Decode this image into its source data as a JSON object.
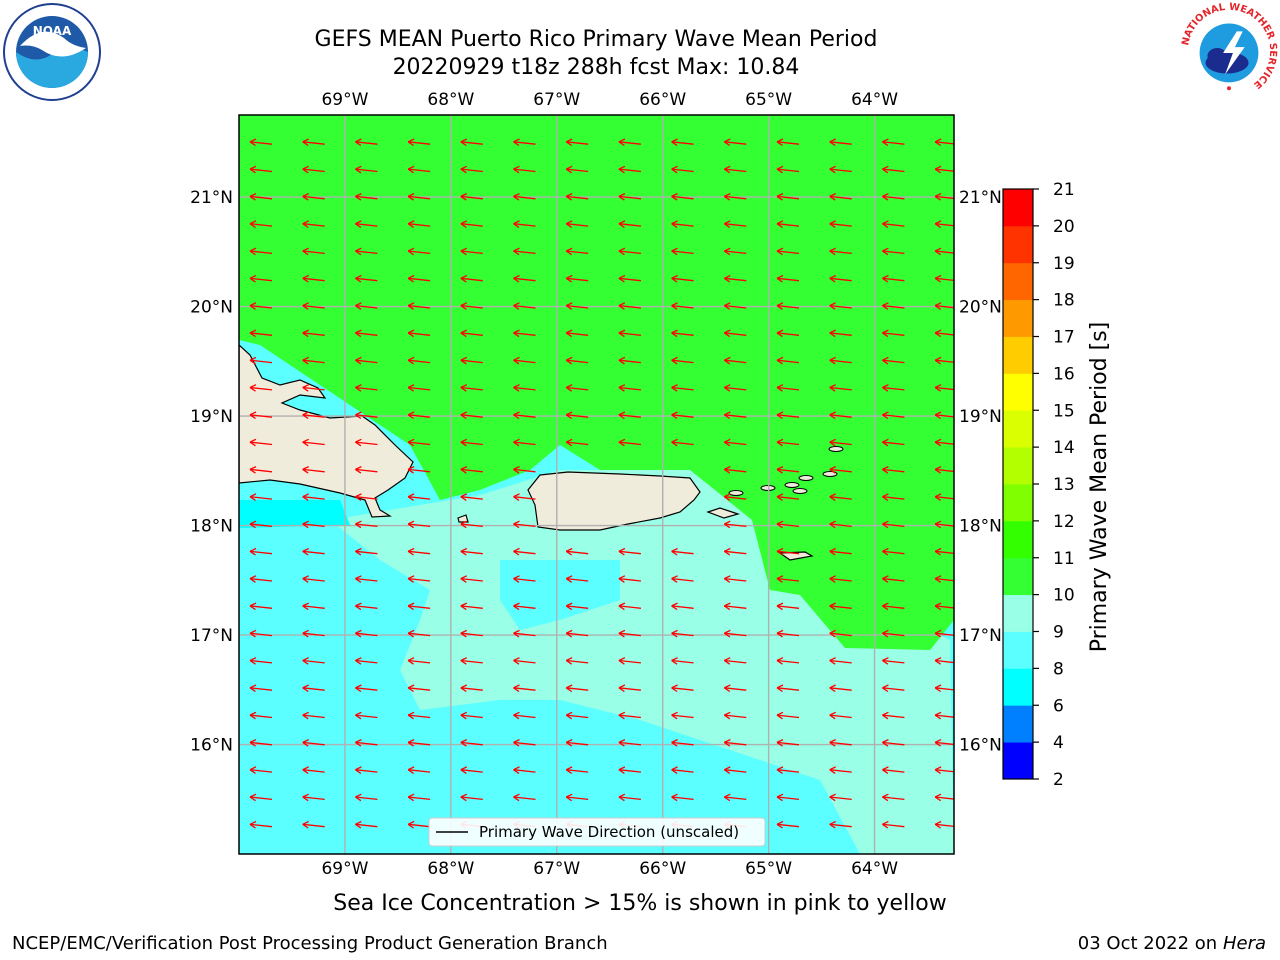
{
  "header": {
    "title_line1": "GEFS MEAN Puerto Rico Primary Wave Mean Period",
    "title_line2": "20220929 t18z 288h fcst   Max: 10.84"
  },
  "logos": {
    "noaa": {
      "text": "NOAA",
      "ring_text": "NATIONAL OCEANIC AND ATMOSPHERIC ADMINISTRATION · U.S. DEPARTMENT OF COMMERCE"
    },
    "nws": {
      "ring_text": "NATIONAL WEATHER SERVICE"
    }
  },
  "map": {
    "lon_labels": [
      "69°W",
      "68°W",
      "67°W",
      "66°W",
      "65°W",
      "64°W"
    ],
    "lat_labels": [
      "21°N",
      "20°N",
      "19°N",
      "18°N",
      "17°N",
      "16°N"
    ],
    "lon_values": [
      -69,
      -68,
      -67,
      -66,
      -65,
      -64
    ],
    "lat_values": [
      21,
      20,
      19,
      18,
      17,
      16
    ],
    "extent": {
      "lon_min": -70.0,
      "lon_max": -63.25,
      "lat_min": 15.0,
      "lat_max": 21.75
    },
    "legend_label": "Primary Wave Direction (unscaled)",
    "colors": {
      "land": "#efecdc",
      "green": "#33ff33",
      "aqua_light": "#99ffe6",
      "cyan": "#5cffff",
      "cyan_strong": "#00ffff",
      "arrow": "#ff0000",
      "grid": "#b0b0b0"
    }
  },
  "colorbar": {
    "label": "Primary Wave Mean Period [s]",
    "ticks": [
      "2",
      "4",
      "6",
      "8",
      "9",
      "10",
      "11",
      "12",
      "13",
      "14",
      "15",
      "16",
      "17",
      "18",
      "19",
      "20",
      "21"
    ],
    "colors": [
      "#0000ff",
      "#0080ff",
      "#00ffff",
      "#5cffff",
      "#99ffe6",
      "#33ff33",
      "#33ff00",
      "#80ff00",
      "#b3ff00",
      "#d9ff00",
      "#ffff00",
      "#ffcc00",
      "#ff9900",
      "#ff6600",
      "#ff3300",
      "#ff0000"
    ]
  },
  "chart_data": {
    "type": "heatmap",
    "title": "GEFS MEAN Puerto Rico Primary Wave Mean Period",
    "subtitle": "20220929 t18z 288h fcst   Max: 10.84",
    "max_value": 10.84,
    "value_label": "Primary Wave Mean Period [s]",
    "vector_field": "Primary Wave Direction (unscaled)",
    "dominant_direction": "waves propagating toward the west (arrows pointing west, slightly south-west)",
    "region_values": [
      {
        "region": "north of Puerto Rico / Hispaniola",
        "range": "10-11"
      },
      {
        "region": "Mona Passage / south coast",
        "range": "9-10"
      },
      {
        "region": "central Caribbean south of 17.5°N",
        "range": "8-9"
      },
      {
        "region": "south-west corner near 18°N 69°W",
        "range": "6-8"
      }
    ]
  },
  "footer": {
    "note": "Sea Ice Concentration > 15% is shown in pink to yellow",
    "left": "NCEP/EMC/Verification Post Processing Product Generation Branch",
    "date": "03 Oct 2022 on",
    "host": "Hera"
  }
}
